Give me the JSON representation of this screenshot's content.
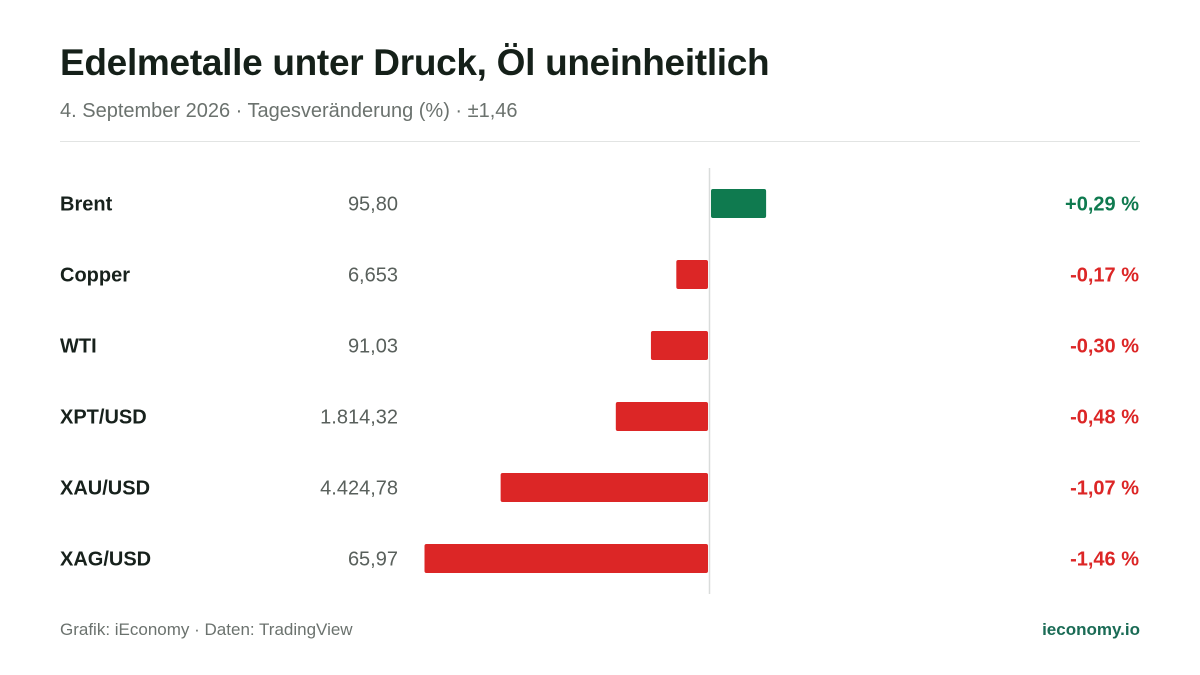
{
  "header": {
    "title": "Edelmetalle unter Druck, Öl uneinheitlich",
    "subtitle": "4. September 2026 · Tagesveränderung (%) · ±1,46"
  },
  "footer": {
    "source": "Grafik: iEconomy · Daten: TradingView",
    "brand": "ieconomy.io"
  },
  "colors": {
    "positive": "#0f7a4f",
    "negative": "#dc2626",
    "axis": "#d9dcdb",
    "label": "#17211c",
    "price": "#59605c"
  },
  "chart_data": {
    "type": "bar",
    "orientation": "horizontal",
    "unit": "%",
    "xlim": [
      -1.46,
      1.46
    ],
    "grid": false,
    "legend": "none",
    "categories": [
      "Brent",
      "Copper",
      "WTI",
      "XPT/USD",
      "XAU/USD",
      "XAG/USD"
    ],
    "prices": [
      "95,80",
      "6,653",
      "91,03",
      "1.814,32",
      "4.424,78",
      "65,97"
    ],
    "values": [
      0.29,
      -0.17,
      -0.3,
      -0.48,
      -1.07,
      -1.46
    ],
    "value_labels": [
      "+0,29 %",
      "-0,17 %",
      "-0,30 %",
      "-0,48 %",
      "-1,07 %",
      "-1,46 %"
    ]
  }
}
